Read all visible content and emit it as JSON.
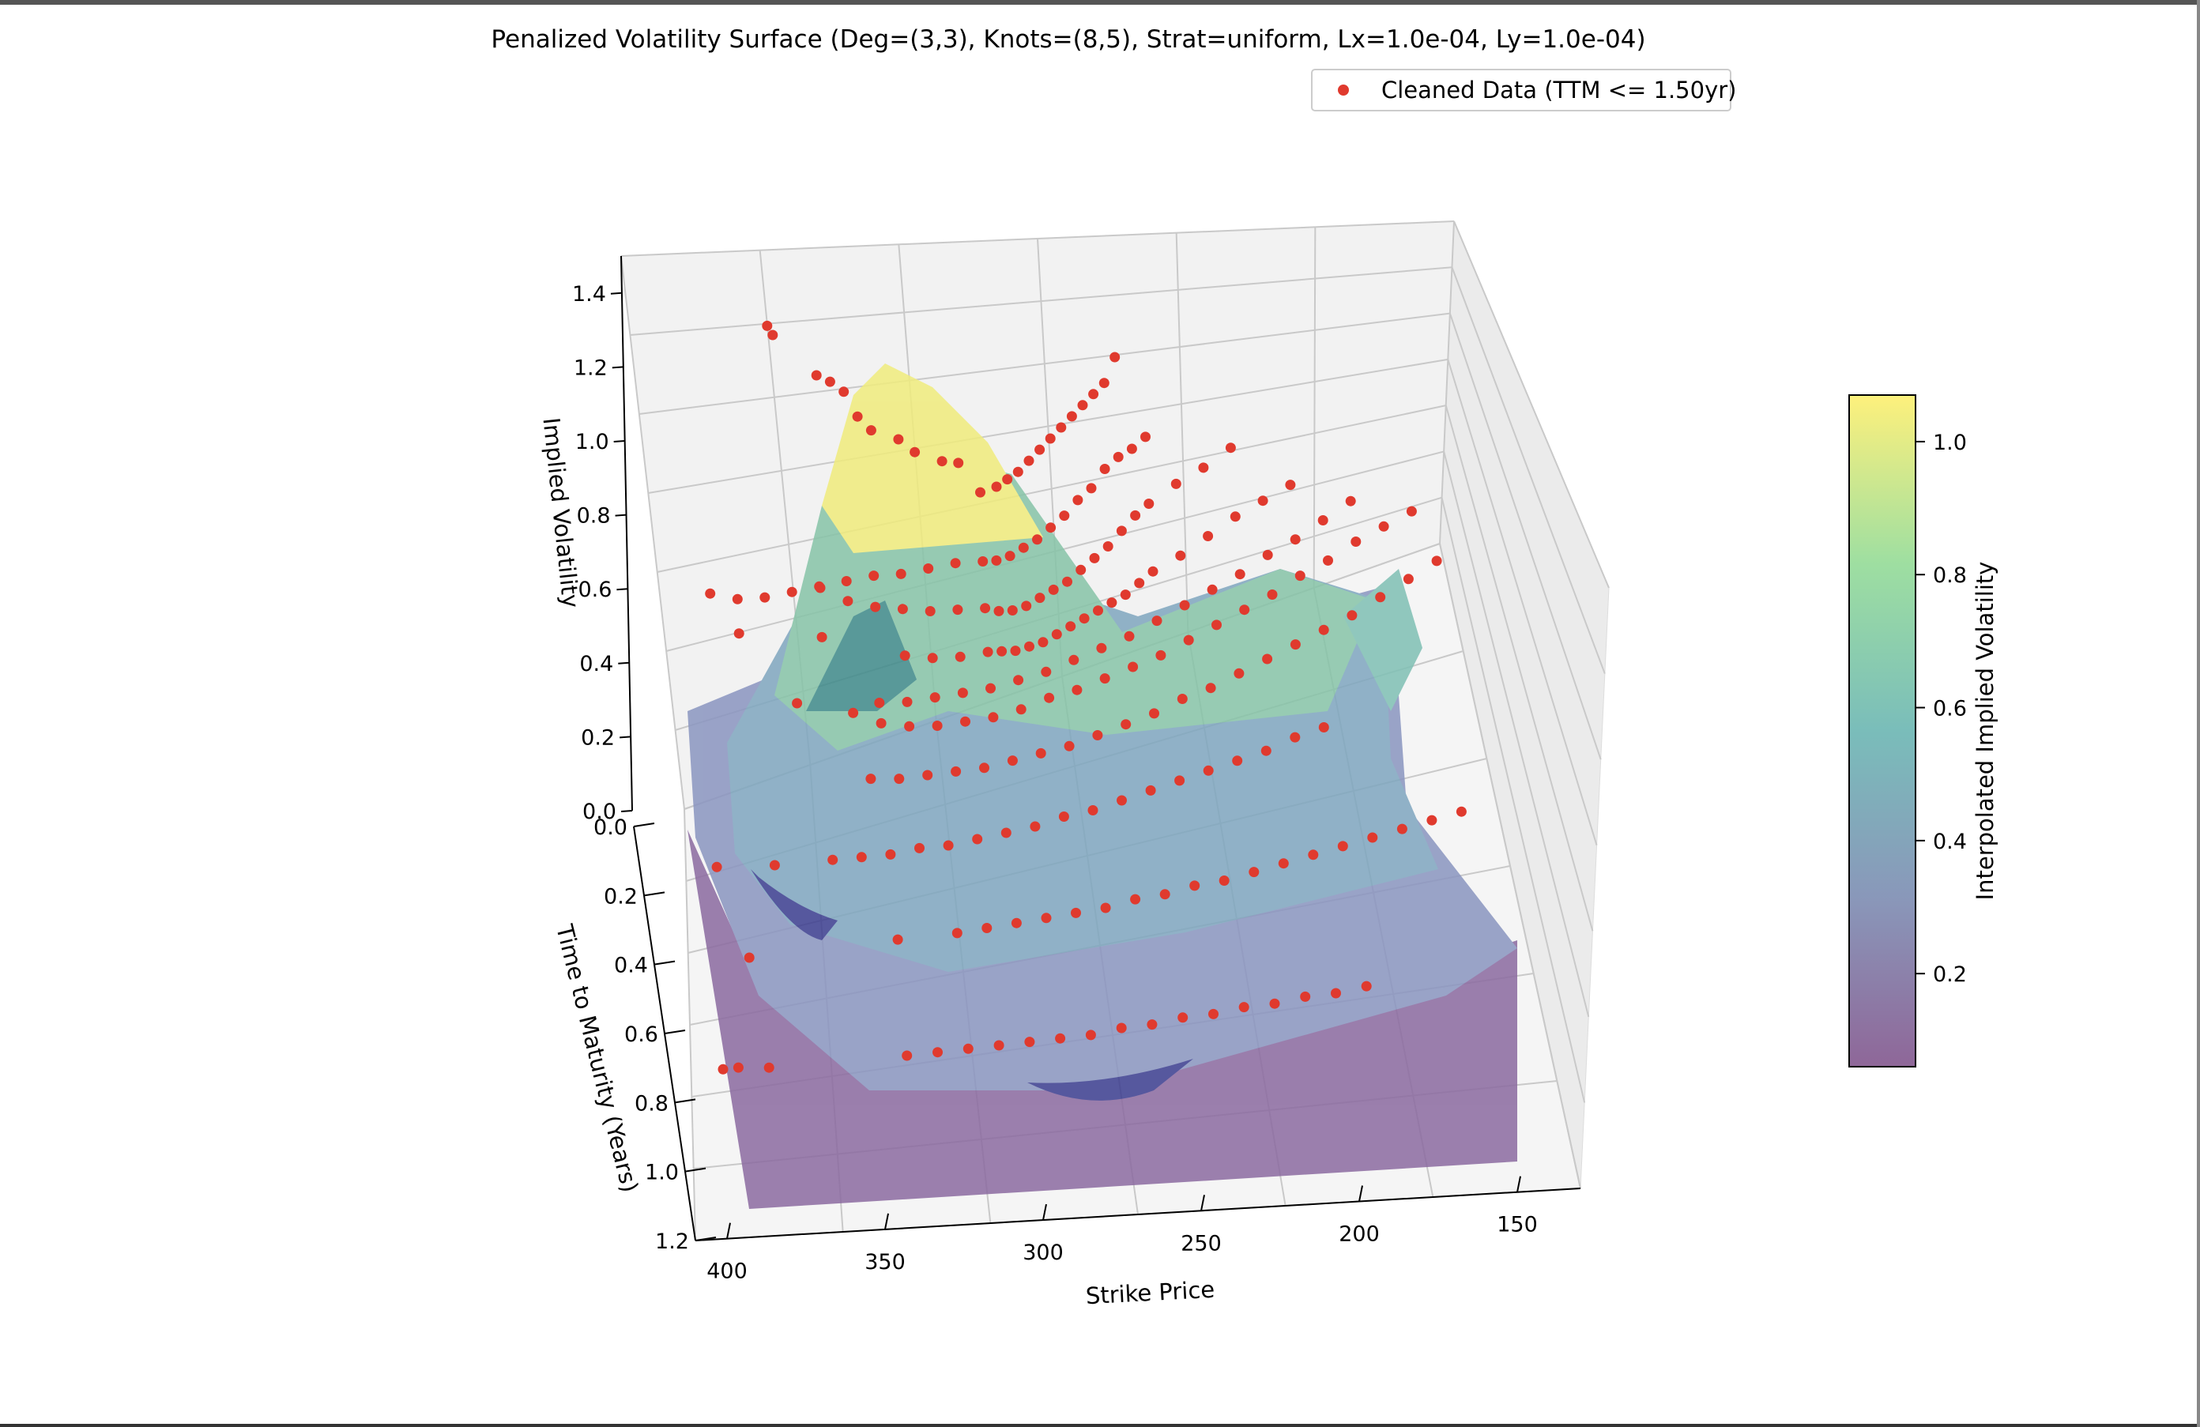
{
  "chart_data": {
    "type": "surface3d",
    "title": "Penalized Volatility Surface (Deg=(3,3), Knots=(8,5), Strat=uniform, Lx=1.0e-04, Ly=1.0e-04)",
    "xlabel": "Strike Price",
    "ylabel": "Time to Maturity (Years)",
    "zlabel": "Implied Volatility",
    "x_ticks": [
      "400",
      "350",
      "300",
      "250",
      "200",
      "150"
    ],
    "y_ticks": [
      "0.0",
      "0.2",
      "0.4",
      "0.6",
      "0.8",
      "1.0",
      "1.2"
    ],
    "z_ticks": [
      "0.0",
      "0.2",
      "0.4",
      "0.6",
      "0.8",
      "1.0",
      "1.2",
      "1.4"
    ],
    "xlim": [
      130,
      410
    ],
    "ylim": [
      0,
      1.2
    ],
    "zlim": [
      0,
      1.5
    ],
    "legend": {
      "label": "Cleaned Data (TTM <= 1.50yr)",
      "location": "top-right",
      "marker_color": "#e03a2e"
    },
    "colorbar": {
      "label": "Interpolated Implied Volatility",
      "ticks": [
        "0.2",
        "0.4",
        "0.6",
        "0.8",
        "1.0"
      ],
      "range": [
        0.06,
        1.07
      ],
      "colormap": "viridis"
    },
    "scatter_color": "#e03a2e",
    "grid": true,
    "alpha": 0.6,
    "data_points": [
      {
        "ttm": 0.02,
        "strikes": [
          378,
          376,
          360,
          355,
          350,
          345,
          340,
          330,
          324,
          314,
          308,
          300,
          294,
          290,
          286,
          282,
          278,
          274,
          270,
          266,
          262,
          258,
          254,
          250
        ],
        "ivs": [
          1.25,
          1.22,
          1.07,
          1.04,
          1.0,
          0.92,
          0.87,
          0.82,
          0.77,
          0.72,
          0.7,
          0.6,
          0.6,
          0.61,
          0.62,
          0.64,
          0.66,
          0.68,
          0.7,
          0.72,
          0.74,
          0.76,
          0.78,
          0.84
        ]
      },
      {
        "ttm": 0.06,
        "strikes": [
          400,
          390,
          380,
          370,
          360,
          350,
          340,
          330,
          320,
          310,
          300,
          295,
          290,
          285,
          280,
          275,
          270,
          265,
          260,
          255,
          250,
          245,
          240
        ],
        "ivs": [
          0.62,
          0.58,
          0.56,
          0.55,
          0.54,
          0.53,
          0.52,
          0.5,
          0.49,
          0.48,
          0.46,
          0.45,
          0.45,
          0.46,
          0.47,
          0.49,
          0.51,
          0.54,
          0.56,
          0.6,
          0.62,
          0.63,
          0.65
        ]
      },
      {
        "ttm": 0.1,
        "strikes": [
          360,
          350,
          340,
          330,
          320,
          310,
          300,
          295,
          290,
          285,
          280,
          275,
          270,
          265,
          260,
          255,
          250,
          245,
          240,
          230,
          220,
          210
        ],
        "ivs": [
          0.58,
          0.52,
          0.48,
          0.45,
          0.42,
          0.4,
          0.38,
          0.36,
          0.35,
          0.35,
          0.36,
          0.37,
          0.38,
          0.4,
          0.42,
          0.44,
          0.47,
          0.5,
          0.52,
          0.55,
          0.57,
          0.6
        ]
      },
      {
        "ttm": 0.15,
        "strikes": [
          390,
          360,
          330,
          320,
          310,
          300,
          295,
          290,
          285,
          280,
          275,
          270,
          265,
          260,
          255,
          250,
          245,
          240,
          230,
          220,
          210,
          200,
          190
        ],
        "ivs": [
          0.58,
          0.5,
          0.38,
          0.35,
          0.33,
          0.32,
          0.31,
          0.3,
          0.3,
          0.3,
          0.31,
          0.32,
          0.33,
          0.34,
          0.35,
          0.36,
          0.38,
          0.4,
          0.42,
          0.45,
          0.48,
          0.5,
          0.52
        ]
      },
      {
        "ttm": 0.2,
        "strikes": [
          340,
          330,
          320,
          310,
          300,
          290,
          280,
          270,
          260,
          250,
          240,
          230,
          220,
          210,
          200,
          190,
          180,
          170
        ],
        "ivs": [
          0.33,
          0.31,
          0.3,
          0.29,
          0.28,
          0.28,
          0.28,
          0.29,
          0.3,
          0.31,
          0.33,
          0.35,
          0.37,
          0.39,
          0.42,
          0.44,
          0.47,
          0.5
        ]
      },
      {
        "ttm": 0.25,
        "strikes": [
          370,
          350,
          340,
          330,
          320,
          310,
          300,
          290,
          280,
          270,
          260,
          250,
          240,
          230,
          220,
          210,
          200,
          190,
          180,
          170,
          160,
          150
        ],
        "ivs": [
          0.45,
          0.38,
          0.33,
          0.3,
          0.28,
          0.27,
          0.26,
          0.26,
          0.27,
          0.27,
          0.28,
          0.29,
          0.3,
          0.32,
          0.34,
          0.36,
          0.38,
          0.41,
          0.43,
          0.46,
          0.48,
          0.5
        ]
      },
      {
        "ttm": 0.35,
        "strikes": [
          345,
          335,
          325,
          315,
          305,
          295,
          285,
          275,
          265,
          255,
          245,
          235,
          225,
          215,
          205,
          195,
          185,
          175,
          165,
          155,
          145
        ],
        "ivs": [
          0.3,
          0.28,
          0.27,
          0.26,
          0.25,
          0.25,
          0.25,
          0.25,
          0.26,
          0.27,
          0.28,
          0.3,
          0.31,
          0.33,
          0.35,
          0.37,
          0.39,
          0.41,
          0.44,
          0.47,
          0.5
        ]
      },
      {
        "ttm": 0.5,
        "strikes": [
          400,
          380,
          360,
          350,
          340,
          330,
          320,
          310,
          300,
          290,
          280,
          270,
          260,
          250,
          240,
          230,
          220,
          210,
          200,
          190
        ],
        "ivs": [
          0.32,
          0.29,
          0.27,
          0.26,
          0.25,
          0.25,
          0.24,
          0.24,
          0.24,
          0.24,
          0.25,
          0.25,
          0.26,
          0.27,
          0.28,
          0.29,
          0.3,
          0.31,
          0.33,
          0.34
        ]
      },
      {
        "ttm": 0.7,
        "strikes": [
          390,
          340,
          320,
          310,
          300,
          290,
          280,
          270,
          260,
          250,
          240,
          230,
          220,
          210,
          200,
          190,
          180,
          170,
          160,
          150
        ],
        "ivs": [
          0.26,
          0.24,
          0.23,
          0.23,
          0.23,
          0.23,
          0.23,
          0.23,
          0.24,
          0.24,
          0.25,
          0.25,
          0.26,
          0.27,
          0.28,
          0.29,
          0.3,
          0.31,
          0.32,
          0.33
        ]
      },
      {
        "ttm": 0.95,
        "strikes": [
          400,
          395,
          385,
          340,
          330,
          320,
          310,
          300,
          290,
          280,
          270,
          260,
          250,
          240,
          230,
          220,
          210,
          200,
          190
        ],
        "ivs": [
          0.22,
          0.22,
          0.21,
          0.2,
          0.2,
          0.2,
          0.2,
          0.2,
          0.2,
          0.2,
          0.21,
          0.21,
          0.22,
          0.22,
          0.23,
          0.23,
          0.24,
          0.24,
          0.25
        ]
      }
    ]
  }
}
